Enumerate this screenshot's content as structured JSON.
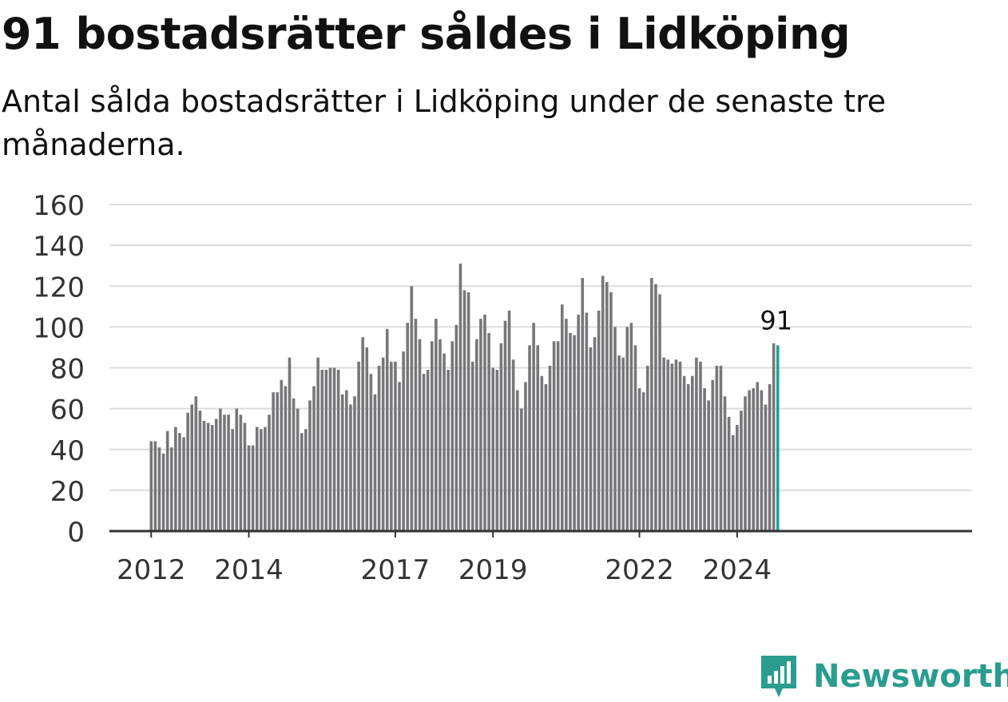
{
  "header": {
    "title": "91 bostadsrätter såldes i Lidköping",
    "subtitle": "Antal sålda bostadsrätter i Lidköping under de senaste tre månaderna."
  },
  "branding": {
    "name": "Newsworthy",
    "icon": "newsworthy-logo-icon"
  },
  "colors": {
    "bar": "#77767b",
    "highlight": "#1aa393",
    "grid": "#dddddd",
    "axis": "#333333",
    "brand": "#2a9d8f"
  },
  "chart_data": {
    "type": "bar",
    "title": "91 bostadsrätter såldes i Lidköping",
    "subtitle": "Antal sålda bostadsrätter i Lidköping under de senaste tre månaderna.",
    "xlabel": "",
    "ylabel": "",
    "ylim": [
      0,
      160
    ],
    "yticks": [
      0,
      20,
      40,
      60,
      80,
      100,
      120,
      140,
      160
    ],
    "grid": true,
    "x_start": "2012-01",
    "x_tick_labels": [
      {
        "label": "2012",
        "month": "2012-01"
      },
      {
        "label": "2014",
        "month": "2014-01"
      },
      {
        "label": "2017",
        "month": "2017-01"
      },
      {
        "label": "2019",
        "month": "2019-01"
      },
      {
        "label": "2022",
        "month": "2022-01"
      },
      {
        "label": "2024",
        "month": "2024-01"
      }
    ],
    "values": [
      44,
      44,
      41,
      38,
      49,
      41,
      51,
      48,
      46,
      58,
      62,
      66,
      59,
      54,
      53,
      52,
      55,
      60,
      57,
      57,
      50,
      60,
      57,
      53,
      42,
      42,
      51,
      50,
      51,
      57,
      68,
      68,
      74,
      71,
      85,
      65,
      60,
      48,
      50,
      64,
      71,
      85,
      79,
      79,
      80,
      80,
      79,
      67,
      69,
      62,
      66,
      83,
      95,
      90,
      77,
      67,
      81,
      85,
      99,
      83,
      83,
      73,
      88,
      102,
      120,
      104,
      94,
      77,
      79,
      93,
      104,
      94,
      87,
      79,
      93,
      101,
      131,
      118,
      117,
      83,
      94,
      104,
      106,
      97,
      80,
      79,
      92,
      103,
      108,
      84,
      69,
      60,
      73,
      91,
      102,
      91,
      76,
      72,
      81,
      93,
      93,
      111,
      104,
      97,
      96,
      106,
      124,
      107,
      90,
      95,
      108,
      125,
      122,
      117,
      100,
      86,
      85,
      100,
      102,
      91,
      70,
      68,
      81,
      124,
      121,
      116,
      85,
      84,
      82,
      84,
      83,
      76,
      72,
      76,
      85,
      83,
      70,
      64,
      74,
      81,
      81,
      66,
      56,
      47,
      52,
      59,
      66,
      69,
      70,
      73,
      69,
      62,
      72,
      92,
      91
    ],
    "highlight_last": true,
    "annotation": "91"
  }
}
